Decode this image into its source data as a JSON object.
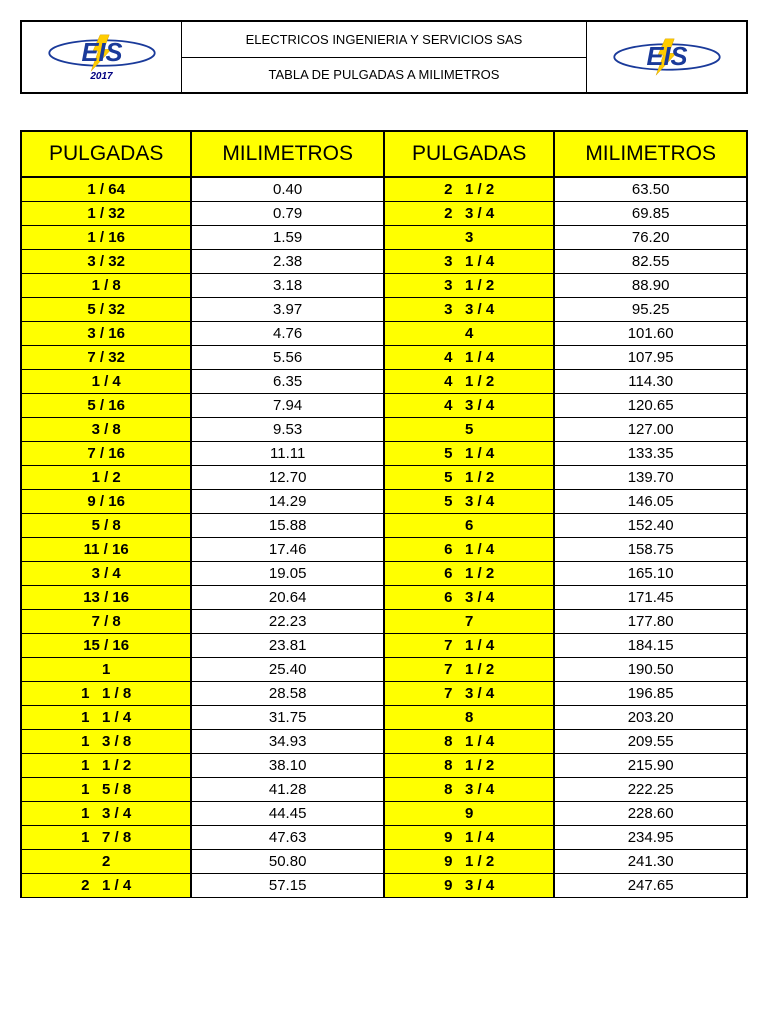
{
  "header": {
    "company": "ELECTRICOS INGENIERIA Y SERVICIOS SAS",
    "title": "TABLA DE PULGADAS A MILIMETROS",
    "year": "2017",
    "logo_text": "EIS",
    "logo_colors": {
      "text": "#1a3a9a",
      "outline": "#000080",
      "bolt": "#ffcc00"
    }
  },
  "table": {
    "columns": [
      "PULGADAS",
      "MILIMETROS",
      "PULGADAS",
      "MILIMETROS"
    ],
    "header_bg": "#ffff00",
    "header_fontsize": 21,
    "cell_fontsize": 15,
    "pulgadas_bg": "#ffff00",
    "milimetros_bg": "#ffffff",
    "border_color": "#000000",
    "rows": [
      [
        "1 / 64",
        "0.40",
        "2   1 / 2",
        "63.50"
      ],
      [
        "1 / 32",
        "0.79",
        "2   3 / 4",
        "69.85"
      ],
      [
        "1 / 16",
        "1.59",
        "3",
        "76.20"
      ],
      [
        "3 / 32",
        "2.38",
        "3   1 / 4",
        "82.55"
      ],
      [
        "1 / 8",
        "3.18",
        "3   1 / 2",
        "88.90"
      ],
      [
        "5 / 32",
        "3.97",
        "3   3 / 4",
        "95.25"
      ],
      [
        "3 / 16",
        "4.76",
        "4",
        "101.60"
      ],
      [
        "7 / 32",
        "5.56",
        "4   1 / 4",
        "107.95"
      ],
      [
        "1 / 4",
        "6.35",
        "4   1 / 2",
        "114.30"
      ],
      [
        "5 / 16",
        "7.94",
        "4   3 / 4",
        "120.65"
      ],
      [
        "3 / 8",
        "9.53",
        "5",
        "127.00"
      ],
      [
        "7 / 16",
        "11.11",
        "5   1 / 4",
        "133.35"
      ],
      [
        "1 / 2",
        "12.70",
        "5   1 / 2",
        "139.70"
      ],
      [
        "9 / 16",
        "14.29",
        "5   3 / 4",
        "146.05"
      ],
      [
        "5 / 8",
        "15.88",
        "6",
        "152.40"
      ],
      [
        "11 / 16",
        "17.46",
        "6   1 / 4",
        "158.75"
      ],
      [
        "3 / 4",
        "19.05",
        "6   1 / 2",
        "165.10"
      ],
      [
        "13 / 16",
        "20.64",
        "6   3 / 4",
        "171.45"
      ],
      [
        "7 / 8",
        "22.23",
        "7",
        "177.80"
      ],
      [
        "15 / 16",
        "23.81",
        "7   1 / 4",
        "184.15"
      ],
      [
        "1",
        "25.40",
        "7   1 / 2",
        "190.50"
      ],
      [
        "1   1 / 8",
        "28.58",
        "7   3 / 4",
        "196.85"
      ],
      [
        "1   1 / 4",
        "31.75",
        "8",
        "203.20"
      ],
      [
        "1   3 / 8",
        "34.93",
        "8   1 / 4",
        "209.55"
      ],
      [
        "1   1 / 2",
        "38.10",
        "8   1 / 2",
        "215.90"
      ],
      [
        "1   5 / 8",
        "41.28",
        "8   3 / 4",
        "222.25"
      ],
      [
        "1   3 / 4",
        "44.45",
        "9",
        "228.60"
      ],
      [
        "1   7 / 8",
        "47.63",
        "9   1 / 4",
        "234.95"
      ],
      [
        "2",
        "50.80",
        "9   1 / 2",
        "241.30"
      ],
      [
        "2   1 / 4",
        "57.15",
        "9   3 / 4",
        "247.65"
      ]
    ]
  }
}
